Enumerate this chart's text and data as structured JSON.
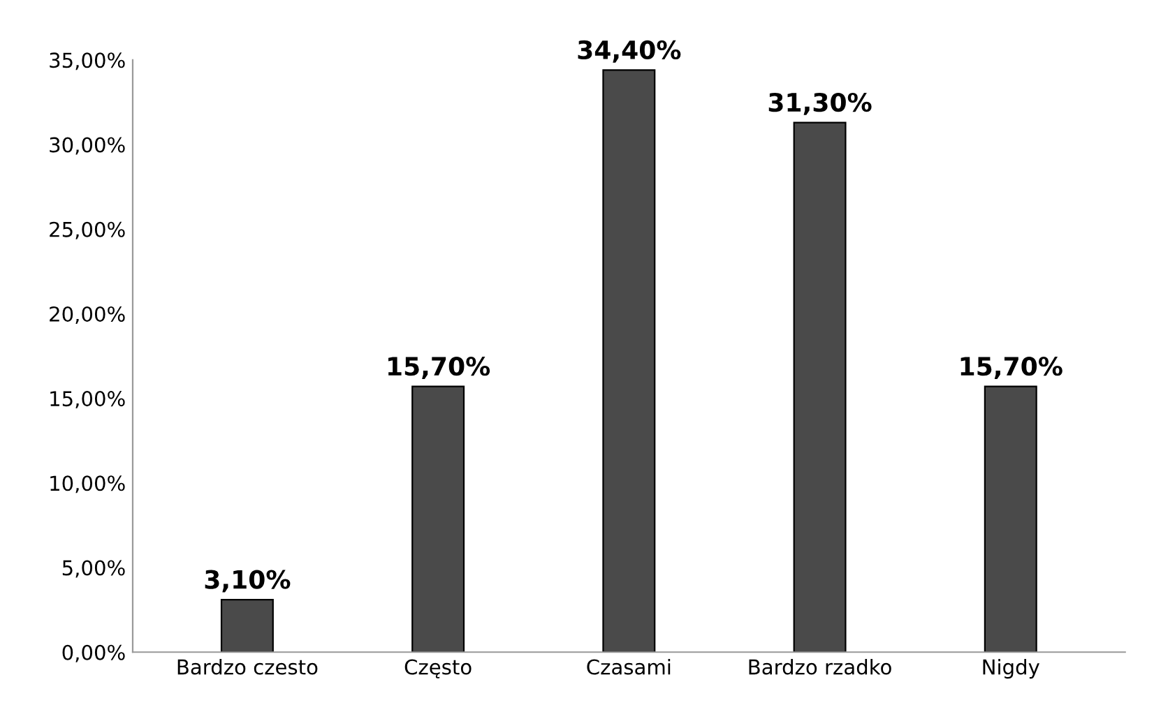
{
  "chart_data": {
    "type": "bar",
    "categories": [
      "Bardzo czesto",
      "Często",
      "Czasami",
      "Bardzo rzadko",
      "Nigdy"
    ],
    "values": [
      3.1,
      15.7,
      34.4,
      31.3,
      15.7
    ],
    "value_labels": [
      "3,10%",
      "15,70%",
      "34,40%",
      "31,30%",
      "15,70%"
    ],
    "color": "#4a4a4a",
    "ylim": [
      0,
      35
    ],
    "yticks": [
      {
        "value": 0,
        "label": "0,00%"
      },
      {
        "value": 5,
        "label": "5,00%"
      },
      {
        "value": 10,
        "label": "10,00%"
      },
      {
        "value": 15,
        "label": "15,00%"
      },
      {
        "value": 20,
        "label": "20,00%"
      },
      {
        "value": 25,
        "label": "25,00%"
      },
      {
        "value": 30,
        "label": "30,00%"
      },
      {
        "value": 35,
        "label": "35,00%"
      }
    ],
    "grid": false,
    "legend": false
  }
}
